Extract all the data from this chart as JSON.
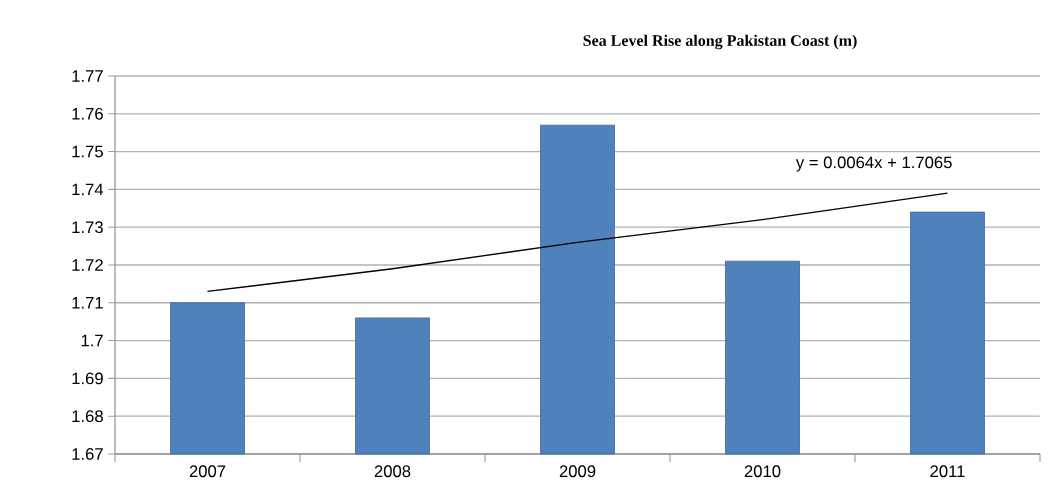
{
  "chart_data": {
    "type": "bar",
    "title": "Sea Level Rise along Pakistan Coast (m)",
    "categories": [
      "2007",
      "2008",
      "2009",
      "2010",
      "2011"
    ],
    "series": [
      {
        "color": "#4f81bd",
        "values": [
          1.71,
          1.706,
          1.757,
          1.721,
          1.734
        ]
      },
      {
        "type": "line",
        "color": "#000000",
        "values": [
          1.713,
          1.719,
          1.726,
          1.732,
          1.739
        ]
      }
    ],
    "annotations": [
      "y = 0.0064x + 1.7065"
    ],
    "ylim": [
      1.67,
      1.77
    ],
    "yticks": [
      1.67,
      1.68,
      1.69,
      1.7,
      1.71,
      1.72,
      1.73,
      1.74,
      1.75,
      1.76,
      1.77
    ],
    "grid": "y"
  }
}
